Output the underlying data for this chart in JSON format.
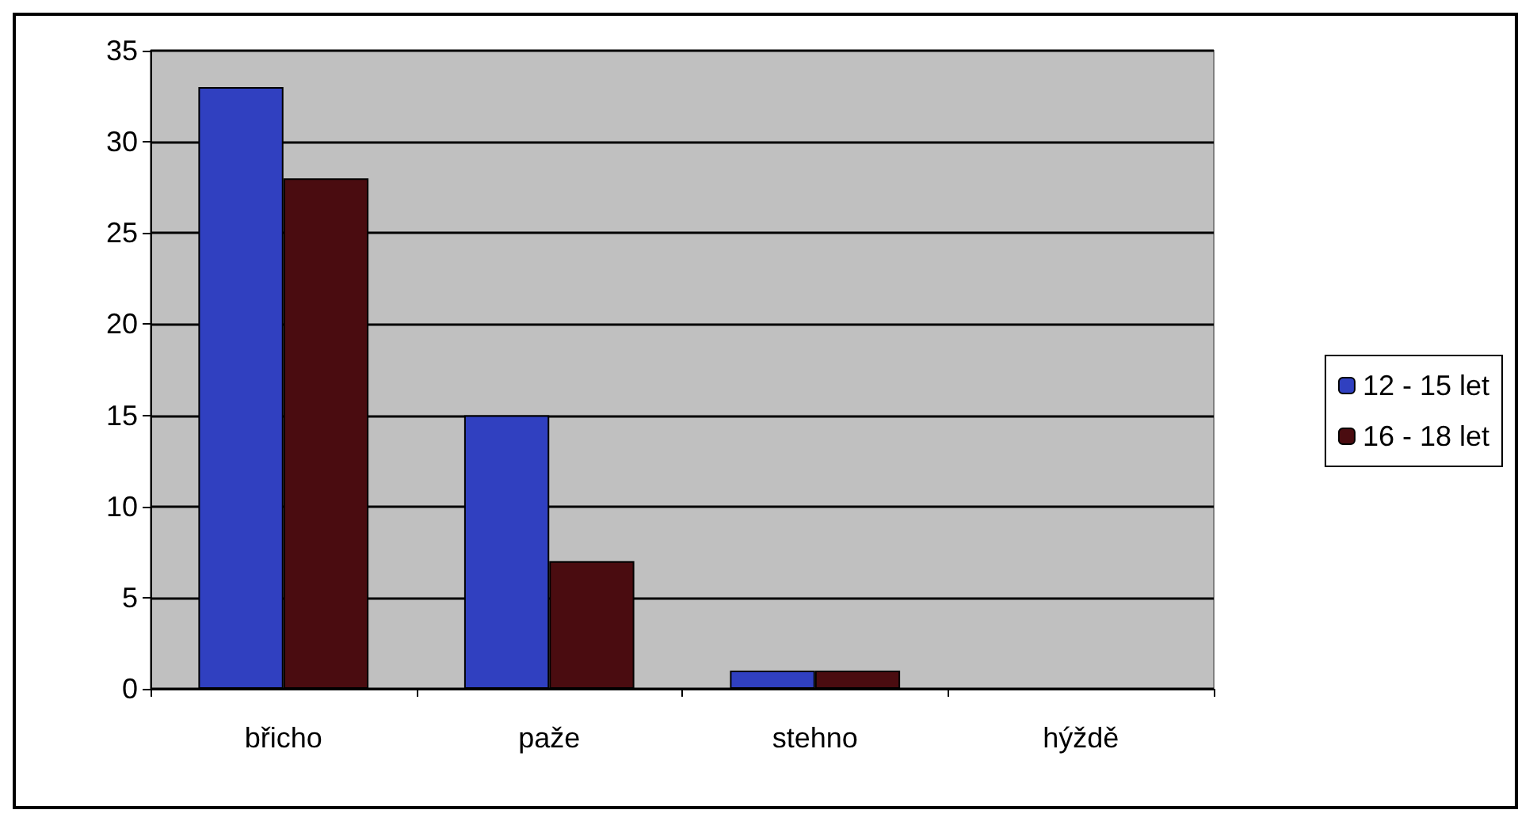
{
  "chart_data": {
    "type": "bar",
    "categories": [
      "břicho",
      "paže",
      "stehno",
      "hýždě"
    ],
    "series": [
      {
        "name": "12 - 15 let",
        "color": "#3040c0",
        "values": [
          33,
          15,
          1,
          0
        ]
      },
      {
        "name": "16 - 18 let",
        "color": "#4a0c10",
        "values": [
          28,
          7,
          1,
          0
        ]
      }
    ],
    "ylim": [
      0,
      35
    ],
    "yticks": [
      0,
      5,
      10,
      15,
      20,
      25,
      30,
      35
    ],
    "grid": "y",
    "legend": "right"
  }
}
